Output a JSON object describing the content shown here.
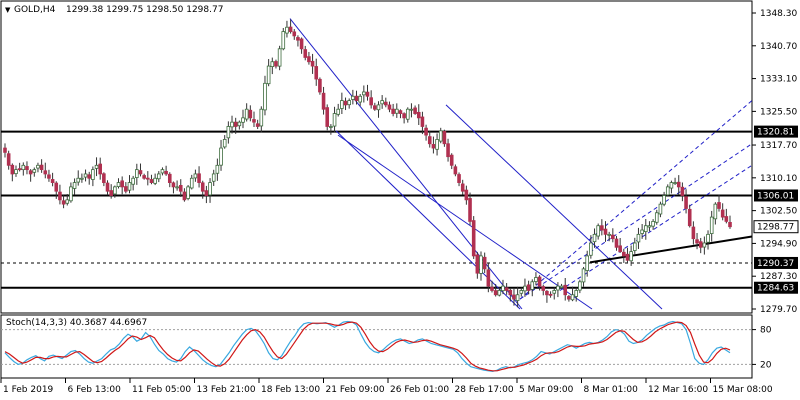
{
  "header": {
    "symbol_label": "GOLD,H4",
    "ohlc_label": "1299.38 1299.75 1298.50 1298.77"
  },
  "stoch_label": "Stoch(14,3,3) 40.3687 44.6967",
  "colors": {
    "bull": "#3d6b3d",
    "bear": "#b03050",
    "channel_down": "#2020c8",
    "channel_up": "#2020c8",
    "hline": "#000000",
    "stoch_main": "#39a9e0",
    "stoch_signal": "#d01818",
    "grid_dot": "#a0a0a0"
  },
  "chart_data": {
    "type": "candlestick",
    "y_ticks": [
      "1348.30",
      "1340.70",
      "1333.10",
      "1325.50",
      "1317.70",
      "1310.10",
      "1302.50",
      "1294.90",
      "1287.30",
      "1279.70"
    ],
    "y_tick_values": [
      1348.3,
      1340.7,
      1333.1,
      1325.5,
      1317.7,
      1310.1,
      1302.5,
      1294.9,
      1287.3,
      1279.7
    ],
    "ylim": [
      1279.7,
      1348.3
    ],
    "x_labels": [
      "1 Feb 2019",
      "6 Feb 13:00",
      "11 Feb 05:00",
      "13 Feb 21:00",
      "18 Feb 13:00",
      "21 Feb 09:00",
      "26 Feb 01:00",
      "28 Feb 17:00",
      "5 Mar 09:00",
      "8 Mar 01:00",
      "12 Mar 16:00",
      "15 Mar 08:00"
    ],
    "levels": [
      {
        "value": 1320.81,
        "label": "1320.81",
        "style": "solid"
      },
      {
        "value": 1306.01,
        "label": "1306.01",
        "style": "solid"
      },
      {
        "value": 1290.37,
        "label": "1290.37",
        "style": "dotted"
      },
      {
        "value": 1284.63,
        "label": "1284.63",
        "style": "solid"
      }
    ],
    "current_price": {
      "value": 1298.77,
      "label": "1298.77"
    },
    "close_path": [
      1316,
      1313,
      1311,
      1312,
      1312,
      1313,
      1312,
      1311,
      1312,
      1313,
      1312,
      1311,
      1310,
      1309,
      1307,
      1305,
      1304,
      1305,
      1308,
      1309,
      1310,
      1310,
      1311,
      1310,
      1312,
      1313,
      1311,
      1309,
      1307,
      1306,
      1308,
      1309,
      1308,
      1307,
      1309,
      1310,
      1312,
      1311,
      1310,
      1310,
      1309,
      1310,
      1311,
      1312,
      1311,
      1309,
      1308,
      1308,
      1307,
      1305,
      1308,
      1310,
      1311,
      1309,
      1307,
      1306,
      1309,
      1311,
      1313,
      1317,
      1319,
      1322,
      1323,
      1322,
      1323,
      1324,
      1326,
      1324,
      1323,
      1322,
      1326,
      1332,
      1336,
      1337,
      1336,
      1340,
      1344,
      1345,
      1344,
      1343,
      1342,
      1340,
      1338,
      1337,
      1336,
      1333,
      1330,
      1326,
      1322,
      1322,
      1325,
      1326,
      1328,
      1327,
      1328,
      1329,
      1328,
      1329,
      1330,
      1329,
      1327,
      1326,
      1327,
      1328,
      1327,
      1326,
      1325,
      1326,
      1325,
      1324,
      1326,
      1326,
      1325,
      1324,
      1322,
      1320,
      1318,
      1317,
      1319,
      1321,
      1318,
      1315,
      1313,
      1311,
      1309,
      1307,
      1305,
      1300,
      1292,
      1288,
      1292,
      1289,
      1285,
      1284,
      1283,
      1284,
      1285,
      1284,
      1283,
      1282,
      1283,
      1284,
      1285,
      1284,
      1286,
      1287,
      1285,
      1284,
      1283,
      1283,
      1284,
      1285,
      1285,
      1283,
      1282,
      1283,
      1284,
      1286,
      1289,
      1292,
      1295,
      1297,
      1299,
      1298,
      1297,
      1297,
      1296,
      1294,
      1293,
      1292,
      1291,
      1293,
      1295,
      1297,
      1298,
      1299,
      1299,
      1300,
      1302,
      1304,
      1306,
      1308,
      1309,
      1309,
      1308,
      1306,
      1303,
      1299,
      1296,
      1295,
      1294,
      1295,
      1297,
      1301,
      1304,
      1303,
      1301,
      1300,
      1298.77
    ],
    "channels": [
      {
        "name": "",
        "style": "solid",
        "points": [
          [
            290,
            18
          ],
          [
            528,
            310
          ],
          [
            336,
            128
          ],
          [
            542,
            310
          ]
        ],
        "pair": [
          [
            290,
            18,
            528,
            310
          ],
          [
            336,
            128,
            519,
            310
          ]
        ]
      }
    ],
    "stoch": {
      "levels": [
        80,
        20
      ],
      "k": [
        40,
        32,
        25,
        20,
        22,
        28,
        32,
        35,
        30,
        26,
        34,
        36,
        33,
        30,
        36,
        42,
        44,
        38,
        30,
        24,
        22,
        26,
        30,
        38,
        45,
        48,
        55,
        65,
        72,
        68,
        60,
        64,
        75,
        68,
        55,
        44,
        38,
        30,
        26,
        24,
        30,
        42,
        50,
        44,
        36,
        28,
        22,
        18,
        16,
        20,
        30,
        40,
        52,
        62,
        72,
        80,
        82,
        78,
        68,
        56,
        40,
        30,
        28,
        35,
        48,
        60,
        70,
        82,
        90,
        92,
        91,
        90,
        91,
        92,
        88,
        84,
        88,
        93,
        94,
        93,
        88,
        72,
        58,
        48,
        42,
        40,
        45,
        52,
        58,
        62,
        64,
        60,
        56,
        58,
        62,
        64,
        60,
        56,
        54,
        52,
        50,
        48,
        46,
        40,
        30,
        22,
        16,
        14,
        12,
        10,
        9,
        8,
        10,
        14,
        16,
        14,
        16,
        20,
        22,
        24,
        28,
        34,
        42,
        40,
        38,
        42,
        46,
        50,
        54,
        52,
        48,
        52,
        56,
        58,
        56,
        58,
        62,
        68,
        76,
        80,
        78,
        72,
        60,
        56,
        58,
        62,
        70,
        76,
        82,
        86,
        88,
        92,
        94,
        92,
        90,
        80,
        56,
        30,
        22,
        20,
        28,
        40,
        48,
        50,
        45,
        40
      ],
      "d": [
        42,
        38,
        32,
        26,
        22,
        24,
        28,
        32,
        32,
        30,
        30,
        33,
        34,
        33,
        33,
        37,
        41,
        42,
        37,
        31,
        25,
        23,
        25,
        31,
        38,
        44,
        49,
        56,
        64,
        69,
        67,
        63,
        66,
        70,
        66,
        55,
        45,
        37,
        31,
        27,
        26,
        32,
        40,
        45,
        43,
        36,
        29,
        23,
        18,
        17,
        21,
        29,
        40,
        51,
        62,
        71,
        78,
        80,
        76,
        67,
        54,
        42,
        33,
        30,
        37,
        48,
        59,
        70,
        81,
        88,
        91,
        91,
        91,
        91,
        90,
        88,
        87,
        89,
        92,
        93,
        91,
        84,
        72,
        59,
        49,
        43,
        42,
        46,
        52,
        58,
        61,
        62,
        60,
        58,
        59,
        61,
        62,
        60,
        57,
        54,
        52,
        50,
        48,
        45,
        39,
        31,
        22,
        17,
        14,
        12,
        10,
        9,
        9,
        11,
        13,
        15,
        15,
        17,
        19,
        22,
        25,
        29,
        35,
        39,
        40,
        40,
        42,
        46,
        50,
        52,
        51,
        51,
        52,
        55,
        56,
        57,
        59,
        63,
        69,
        75,
        78,
        77,
        70,
        63,
        58,
        59,
        63,
        69,
        76,
        81,
        85,
        89,
        91,
        93,
        92,
        87,
        75,
        55,
        36,
        24,
        23,
        29,
        39,
        46,
        48,
        45
      ]
    }
  }
}
